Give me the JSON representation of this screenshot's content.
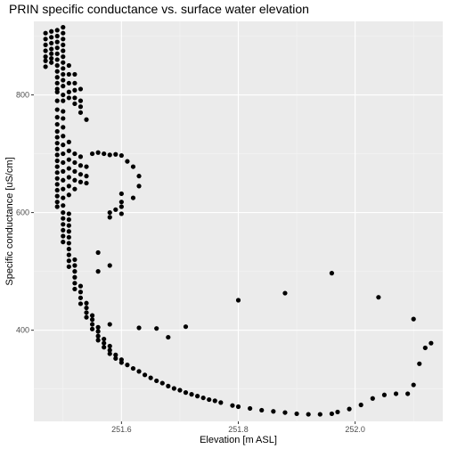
{
  "chart_data": {
    "type": "scatter",
    "title": "PRIN specific conductance vs. surface water elevation",
    "xlabel": "Elevation [m ASL]",
    "ylabel": "Specific conductance [uS/cm]",
    "xlim": [
      251.45,
      252.15
    ],
    "ylim": [
      245,
      925
    ],
    "x_ticks": [
      251.6,
      251.8,
      252.0
    ],
    "x_tick_labels": [
      "251.6",
      "251.8",
      "252.0"
    ],
    "y_ticks": [
      400,
      600,
      800
    ],
    "y_tick_labels": [
      "400",
      "600",
      "800"
    ],
    "grid": true,
    "point_color": "#000000",
    "panel_background": "#ebebeb",
    "points": [
      [
        251.47,
        905
      ],
      [
        251.47,
        895
      ],
      [
        251.47,
        885
      ],
      [
        251.47,
        875
      ],
      [
        251.47,
        865
      ],
      [
        251.47,
        858
      ],
      [
        251.47,
        848
      ],
      [
        251.48,
        908
      ],
      [
        251.48,
        898
      ],
      [
        251.48,
        888
      ],
      [
        251.48,
        878
      ],
      [
        251.48,
        870
      ],
      [
        251.48,
        862
      ],
      [
        251.48,
        855
      ],
      [
        251.49,
        910
      ],
      [
        251.49,
        900
      ],
      [
        251.49,
        890
      ],
      [
        251.49,
        880
      ],
      [
        251.49,
        870
      ],
      [
        251.49,
        860
      ],
      [
        251.49,
        850
      ],
      [
        251.49,
        840
      ],
      [
        251.49,
        830
      ],
      [
        251.49,
        820
      ],
      [
        251.49,
        810
      ],
      [
        251.49,
        805
      ],
      [
        251.49,
        790
      ],
      [
        251.5,
        915
      ],
      [
        251.5,
        905
      ],
      [
        251.5,
        895
      ],
      [
        251.5,
        885
      ],
      [
        251.5,
        875
      ],
      [
        251.5,
        865
      ],
      [
        251.5,
        855
      ],
      [
        251.5,
        845
      ],
      [
        251.5,
        835
      ],
      [
        251.5,
        825
      ],
      [
        251.5,
        815
      ],
      [
        251.5,
        800
      ],
      [
        251.5,
        790
      ],
      [
        251.51,
        850
      ],
      [
        251.51,
        835
      ],
      [
        251.51,
        820
      ],
      [
        251.51,
        805
      ],
      [
        251.51,
        795
      ],
      [
        251.52,
        835
      ],
      [
        251.52,
        820
      ],
      [
        251.52,
        808
      ],
      [
        251.52,
        795
      ],
      [
        251.52,
        785
      ],
      [
        251.53,
        810
      ],
      [
        251.53,
        790
      ],
      [
        251.53,
        780
      ],
      [
        251.53,
        770
      ],
      [
        251.54,
        758
      ],
      [
        251.49,
        775
      ],
      [
        251.49,
        762
      ],
      [
        251.49,
        750
      ],
      [
        251.49,
        738
      ],
      [
        251.49,
        728
      ],
      [
        251.49,
        718
      ],
      [
        251.49,
        708
      ],
      [
        251.49,
        698
      ],
      [
        251.49,
        688
      ],
      [
        251.49,
        678
      ],
      [
        251.49,
        668
      ],
      [
        251.49,
        658
      ],
      [
        251.49,
        648
      ],
      [
        251.49,
        638
      ],
      [
        251.49,
        628
      ],
      [
        251.49,
        618
      ],
      [
        251.49,
        610
      ],
      [
        251.5,
        772
      ],
      [
        251.5,
        760
      ],
      [
        251.5,
        745
      ],
      [
        251.5,
        730
      ],
      [
        251.5,
        715
      ],
      [
        251.5,
        700
      ],
      [
        251.5,
        685
      ],
      [
        251.5,
        670
      ],
      [
        251.5,
        655
      ],
      [
        251.5,
        640
      ],
      [
        251.5,
        625
      ],
      [
        251.5,
        612
      ],
      [
        251.51,
        720
      ],
      [
        251.51,
        705
      ],
      [
        251.51,
        690
      ],
      [
        251.51,
        675
      ],
      [
        251.51,
        660
      ],
      [
        251.51,
        645
      ],
      [
        251.51,
        630
      ],
      [
        251.52,
        700
      ],
      [
        251.52,
        685
      ],
      [
        251.52,
        670
      ],
      [
        251.52,
        655
      ],
      [
        251.52,
        640
      ],
      [
        251.53,
        695
      ],
      [
        251.53,
        680
      ],
      [
        251.53,
        665
      ],
      [
        251.53,
        652
      ],
      [
        251.54,
        678
      ],
      [
        251.54,
        662
      ],
      [
        251.54,
        650
      ],
      [
        251.55,
        700
      ],
      [
        251.56,
        702
      ],
      [
        251.57,
        700
      ],
      [
        251.58,
        698
      ],
      [
        251.59,
        699
      ],
      [
        251.6,
        697
      ],
      [
        251.61,
        687
      ],
      [
        251.62,
        678
      ],
      [
        251.63,
        662
      ],
      [
        251.63,
        645
      ],
      [
        251.62,
        625
      ],
      [
        251.6,
        632
      ],
      [
        251.6,
        618
      ],
      [
        251.6,
        610
      ],
      [
        251.6,
        598
      ],
      [
        251.59,
        605
      ],
      [
        251.58,
        600
      ],
      [
        251.58,
        592
      ],
      [
        251.58,
        510
      ],
      [
        251.56,
        532
      ],
      [
        251.56,
        500
      ],
      [
        251.58,
        410
      ],
      [
        251.5,
        600
      ],
      [
        251.5,
        590
      ],
      [
        251.5,
        580
      ],
      [
        251.5,
        570
      ],
      [
        251.5,
        560
      ],
      [
        251.5,
        550
      ],
      [
        251.51,
        598
      ],
      [
        251.51,
        588
      ],
      [
        251.51,
        578
      ],
      [
        251.51,
        568
      ],
      [
        251.51,
        558
      ],
      [
        251.51,
        548
      ],
      [
        251.51,
        538
      ],
      [
        251.51,
        528
      ],
      [
        251.51,
        518
      ],
      [
        251.51,
        508
      ],
      [
        251.52,
        520
      ],
      [
        251.52,
        510
      ],
      [
        251.52,
        500
      ],
      [
        251.52,
        490
      ],
      [
        251.52,
        480
      ],
      [
        251.52,
        470
      ],
      [
        251.53,
        475
      ],
      [
        251.53,
        465
      ],
      [
        251.53,
        455
      ],
      [
        251.53,
        445
      ],
      [
        251.54,
        446
      ],
      [
        251.54,
        438
      ],
      [
        251.54,
        430
      ],
      [
        251.54,
        422
      ],
      [
        251.55,
        425
      ],
      [
        251.55,
        418
      ],
      [
        251.55,
        410
      ],
      [
        251.55,
        402
      ],
      [
        251.56,
        405
      ],
      [
        251.56,
        398
      ],
      [
        251.56,
        390
      ],
      [
        251.56,
        383
      ],
      [
        251.57,
        385
      ],
      [
        251.57,
        378
      ],
      [
        251.57,
        371
      ],
      [
        251.58,
        373
      ],
      [
        251.58,
        366
      ],
      [
        251.58,
        360
      ],
      [
        251.59,
        358
      ],
      [
        251.59,
        352
      ],
      [
        251.6,
        350
      ],
      [
        251.6,
        345
      ],
      [
        251.61,
        341
      ],
      [
        251.62,
        335
      ],
      [
        251.63,
        330
      ],
      [
        251.64,
        324
      ],
      [
        251.65,
        319
      ],
      [
        251.66,
        314
      ],
      [
        251.67,
        310
      ],
      [
        251.68,
        305
      ],
      [
        251.69,
        301
      ],
      [
        251.7,
        298
      ],
      [
        251.71,
        294
      ],
      [
        251.72,
        291
      ],
      [
        251.73,
        288
      ],
      [
        251.74,
        285
      ],
      [
        251.75,
        282
      ],
      [
        251.76,
        280
      ],
      [
        251.77,
        277
      ],
      [
        251.79,
        272
      ],
      [
        251.8,
        270
      ],
      [
        251.82,
        267
      ],
      [
        251.84,
        264
      ],
      [
        251.86,
        262
      ],
      [
        251.88,
        260
      ],
      [
        251.9,
        258
      ],
      [
        251.92,
        257
      ],
      [
        251.94,
        257
      ],
      [
        251.96,
        258
      ],
      [
        251.97,
        261
      ],
      [
        251.99,
        266
      ],
      [
        252.01,
        273
      ],
      [
        252.03,
        284
      ],
      [
        252.05,
        290
      ],
      [
        252.07,
        292
      ],
      [
        252.09,
        292
      ],
      [
        252.1,
        307
      ],
      [
        252.11,
        343
      ],
      [
        252.12,
        370
      ],
      [
        252.13,
        378
      ],
      [
        252.1,
        419
      ],
      [
        252.04,
        456
      ],
      [
        251.96,
        497
      ],
      [
        251.88,
        463
      ],
      [
        251.8,
        451
      ],
      [
        251.71,
        406
      ],
      [
        251.68,
        388
      ],
      [
        251.66,
        403
      ],
      [
        251.63,
        404
      ]
    ]
  }
}
